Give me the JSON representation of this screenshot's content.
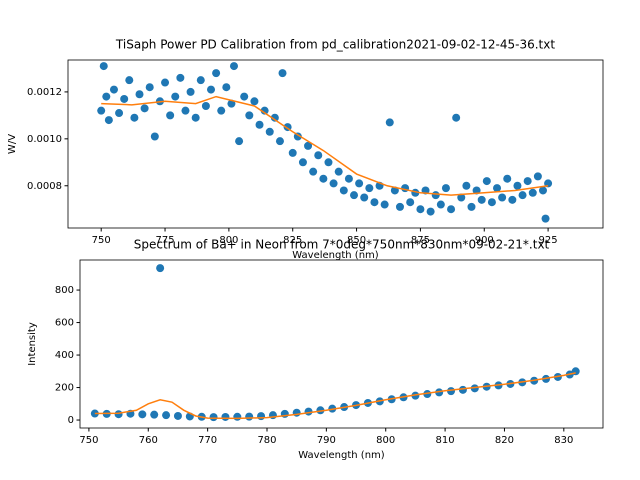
{
  "chart_data": [
    {
      "type": "scatter",
      "title": "TiSaph Power PD Calibration from pd_calibration2021-09-02-12-45-36.txt",
      "x_label": "Wavelength (nm)",
      "y_label": "W/V",
      "xlim": [
        737,
        946.5
      ],
      "ylim": [
        0.00062,
        0.001336
      ],
      "xticks": [
        750,
        775,
        800,
        825,
        850,
        875,
        900,
        925
      ],
      "yticks": [
        0.0008,
        {
          "value": 0.001,
          "label": "0.0010"
        },
        0.0012
      ],
      "series": [
        {
          "type": "scatter",
          "color": "#1f77b4",
          "x": [
            750,
            751,
            752,
            753,
            755,
            757,
            759,
            761,
            763,
            765,
            767,
            769,
            771,
            773,
            775,
            777,
            779,
            781,
            783,
            785,
            787,
            789,
            791,
            793,
            795,
            797,
            799,
            801,
            802,
            804,
            806,
            808,
            810,
            812,
            814,
            816,
            818,
            820,
            821,
            823,
            825,
            827,
            829,
            831,
            833,
            835,
            837,
            839,
            841,
            843,
            845,
            847,
            849,
            851,
            853,
            855,
            857,
            859,
            861,
            863,
            865,
            867,
            869,
            871,
            873,
            875,
            877,
            879,
            881,
            883,
            885,
            887,
            889,
            891,
            893,
            895,
            897,
            899,
            901,
            903,
            905,
            907,
            909,
            911,
            913,
            915,
            917,
            919,
            921,
            923,
            924,
            925
          ],
          "values": [
            0.00112,
            0.00131,
            0.00118,
            0.00108,
            0.00121,
            0.00111,
            0.00117,
            0.00125,
            0.00109,
            0.00119,
            0.00113,
            0.00122,
            0.00101,
            0.00116,
            0.00124,
            0.0011,
            0.00118,
            0.00126,
            0.00112,
            0.0012,
            0.00109,
            0.00125,
            0.00114,
            0.00121,
            0.00128,
            0.00112,
            0.00122,
            0.00115,
            0.00131,
            0.00099,
            0.00118,
            0.0011,
            0.00116,
            0.00106,
            0.00112,
            0.00103,
            0.00109,
            0.00099,
            0.00128,
            0.00105,
            0.00094,
            0.00101,
            0.0009,
            0.00097,
            0.00086,
            0.00093,
            0.00083,
            0.0009,
            0.00081,
            0.00086,
            0.00078,
            0.00083,
            0.00076,
            0.00081,
            0.00075,
            0.00079,
            0.00073,
            0.0008,
            0.00072,
            0.00107,
            0.00078,
            0.00071,
            0.00079,
            0.00073,
            0.00077,
            0.0007,
            0.00078,
            0.00069,
            0.00076,
            0.00072,
            0.00079,
            0.0007,
            0.00109,
            0.00075,
            0.0008,
            0.00071,
            0.00078,
            0.00074,
            0.00082,
            0.00073,
            0.00079,
            0.00075,
            0.00083,
            0.00074,
            0.0008,
            0.00076,
            0.00082,
            0.00077,
            0.00084,
            0.00078,
            0.00066,
            0.00081
          ]
        },
        {
          "type": "line",
          "color": "#ff7f0e",
          "x": [
            750,
            762,
            775,
            787,
            795,
            810,
            825,
            837,
            850,
            862,
            875,
            887,
            900,
            912,
            925
          ],
          "values": [
            0.00115,
            0.001145,
            0.00116,
            0.00115,
            0.00118,
            0.00114,
            0.00103,
            0.00095,
            0.00085,
            0.0008,
            0.00077,
            0.00076,
            0.00077,
            0.00078,
            0.0008
          ]
        }
      ]
    },
    {
      "type": "scatter",
      "title": "Spectrum of Ba+ in Neon from 7*0deg*750nm*830nm*09-02-21*.txt",
      "x_label": "Wavelength (nm)",
      "y_label": "Intensity",
      "xlim": [
        748.5,
        836.6
      ],
      "ylim": [
        -49,
        985
      ],
      "xticks": [
        750,
        760,
        770,
        780,
        790,
        800,
        810,
        820,
        830
      ],
      "yticks": [
        0,
        200,
        400,
        600,
        800
      ],
      "series": [
        {
          "type": "scatter",
          "color": "#1f77b4",
          "x": [
            751,
            753,
            755,
            757,
            759,
            761,
            762,
            763,
            765,
            767,
            769,
            771,
            773,
            775,
            777,
            779,
            781,
            783,
            785,
            787,
            789,
            791,
            793,
            795,
            797,
            799,
            801,
            803,
            805,
            807,
            809,
            811,
            813,
            815,
            817,
            819,
            821,
            823,
            825,
            827,
            829,
            831,
            832
          ],
          "values": [
            40,
            38,
            36,
            39,
            35,
            33,
            935,
            30,
            25,
            22,
            20,
            18,
            19,
            20,
            21,
            24,
            30,
            38,
            45,
            52,
            60,
            70,
            80,
            92,
            105,
            115,
            128,
            140,
            150,
            160,
            170,
            178,
            186,
            195,
            205,
            213,
            222,
            232,
            242,
            253,
            265,
            280,
            300
          ]
        },
        {
          "type": "line",
          "color": "#ff7f0e",
          "x": [
            751,
            755,
            758,
            760,
            762,
            764,
            766,
            768,
            770,
            775,
            780,
            785,
            790,
            795,
            800,
            805,
            810,
            815,
            820,
            825,
            830,
            832
          ],
          "values": [
            40,
            42,
            60,
            100,
            125,
            110,
            60,
            25,
            12,
            10,
            15,
            35,
            60,
            90,
            125,
            155,
            180,
            200,
            220,
            245,
            275,
            290
          ]
        }
      ]
    }
  ]
}
